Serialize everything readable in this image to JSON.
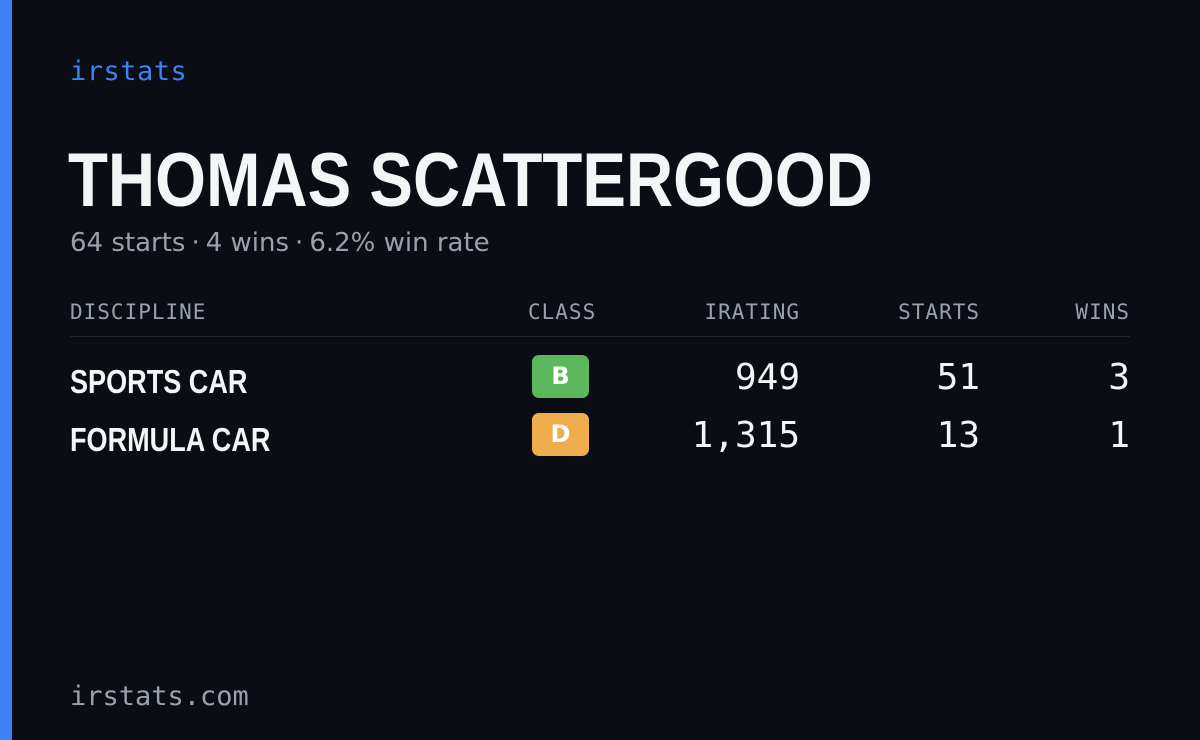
{
  "brand": "irstats",
  "driver": {
    "name": "THOMAS SCATTERGOOD"
  },
  "summary": {
    "starts": "64 starts",
    "wins": "4 wins",
    "win_rate": "6.2% win rate",
    "separator": "·"
  },
  "table": {
    "headers": {
      "discipline": "DISCIPLINE",
      "class": "CLASS",
      "irating": "IRATING",
      "starts": "STARTS",
      "wins": "WINS"
    },
    "rows": [
      {
        "discipline": "SPORTS CAR",
        "class": "B",
        "class_color": "#5cb85c",
        "irating": "949",
        "starts": "51",
        "wins": "3"
      },
      {
        "discipline": "FORMULA CAR",
        "class": "D",
        "class_color": "#f0ad4e",
        "irating": "1,315",
        "starts": "13",
        "wins": "1"
      }
    ]
  },
  "footer": {
    "site": "irstats.com"
  },
  "colors": {
    "accent": "#3b82f6",
    "background": "#0a0d14",
    "text": "#f4f5f7",
    "muted": "#9aa1ad"
  }
}
